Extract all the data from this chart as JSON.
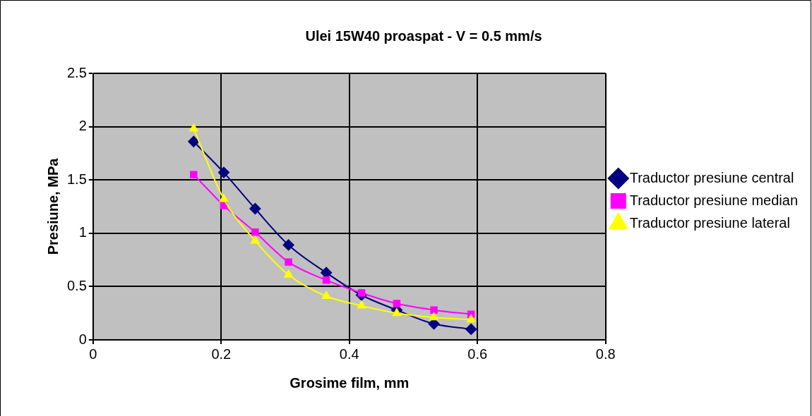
{
  "chart_data": {
    "type": "line",
    "title": "Ulei 15W40 proaspat - V = 0.5 mm/s",
    "xlabel": "Grosime film, mm",
    "ylabel": "Presiune, MPa",
    "xlim": [
      0,
      0.8
    ],
    "xticks": [
      0,
      0.2,
      0.4,
      0.6,
      0.8
    ],
    "ylim": [
      0,
      2.5
    ],
    "yticks": [
      0,
      0.5,
      1,
      1.5,
      2,
      2.5
    ],
    "grid": true,
    "legend": "right",
    "x": [
      0.157,
      0.204,
      0.253,
      0.305,
      0.364,
      0.419,
      0.474,
      0.532,
      0.59
    ],
    "series": [
      {
        "name": "Traductor presiune central",
        "color": "#000080",
        "marker": "diamond",
        "values": [
          1.86,
          1.57,
          1.23,
          0.89,
          0.63,
          0.42,
          0.28,
          0.15,
          0.1
        ]
      },
      {
        "name": "Traductor presiune median",
        "color": "#ff00ff",
        "marker": "square",
        "values": [
          1.55,
          1.26,
          1.01,
          0.73,
          0.56,
          0.44,
          0.34,
          0.28,
          0.24
        ]
      },
      {
        "name": "Traductor presiune lateral",
        "color": "#ffff00",
        "marker": "triangle",
        "values": [
          1.98,
          1.32,
          0.93,
          0.61,
          0.41,
          0.32,
          0.25,
          0.21,
          0.19
        ]
      }
    ]
  }
}
